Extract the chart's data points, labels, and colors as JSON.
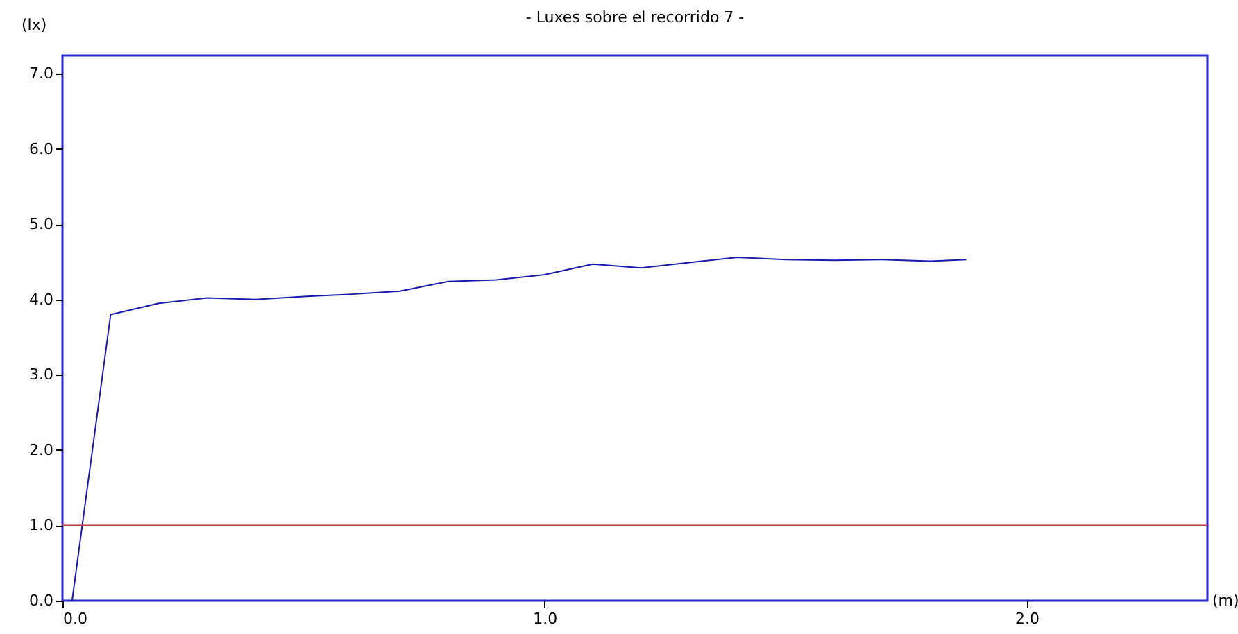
{
  "chart_data": {
    "type": "line",
    "title": "- Luxes sobre el recorrido 7 -",
    "xlabel": "(m)",
    "ylabel": "(lx)",
    "series": [
      {
        "color": "#1a1ab0",
        "x": [
          0.02,
          0.1,
          0.2,
          0.3,
          0.4,
          0.5,
          0.6,
          0.7,
          0.8,
          0.9,
          1.0,
          1.1,
          1.2,
          1.3,
          1.4,
          1.5,
          1.6,
          1.7,
          1.8,
          1.875
        ],
        "values": [
          0.0,
          3.8,
          3.95,
          4.02,
          4.0,
          4.04,
          4.07,
          4.11,
          4.24,
          4.26,
          4.33,
          4.47,
          4.42,
          4.49,
          4.56,
          4.53,
          4.52,
          4.53,
          4.51,
          4.53
        ]
      }
    ],
    "xlim": [
      0,
      2.375
    ],
    "ylim": [
      0,
      7.24
    ],
    "xticks": [
      {
        "value": 0,
        "label": "0.0"
      },
      {
        "value": 1,
        "label": "1.0"
      },
      {
        "value": 2,
        "label": "2.0"
      }
    ],
    "yticks": [
      {
        "value": 0,
        "label": "0.0"
      },
      {
        "value": 1,
        "label": "1.0"
      },
      {
        "value": 2,
        "label": "2.0"
      },
      {
        "value": 3,
        "label": "3.0"
      },
      {
        "value": 4,
        "label": "4.0"
      },
      {
        "value": 5,
        "label": "5.0"
      },
      {
        "value": 6,
        "label": "6.0"
      },
      {
        "value": 7,
        "label": "7.0"
      }
    ],
    "ref_lines": [
      {
        "axis": "y",
        "value": 1.0,
        "color": "#c03838"
      }
    ],
    "grid": false,
    "marker": "none",
    "line_style": "solid"
  }
}
